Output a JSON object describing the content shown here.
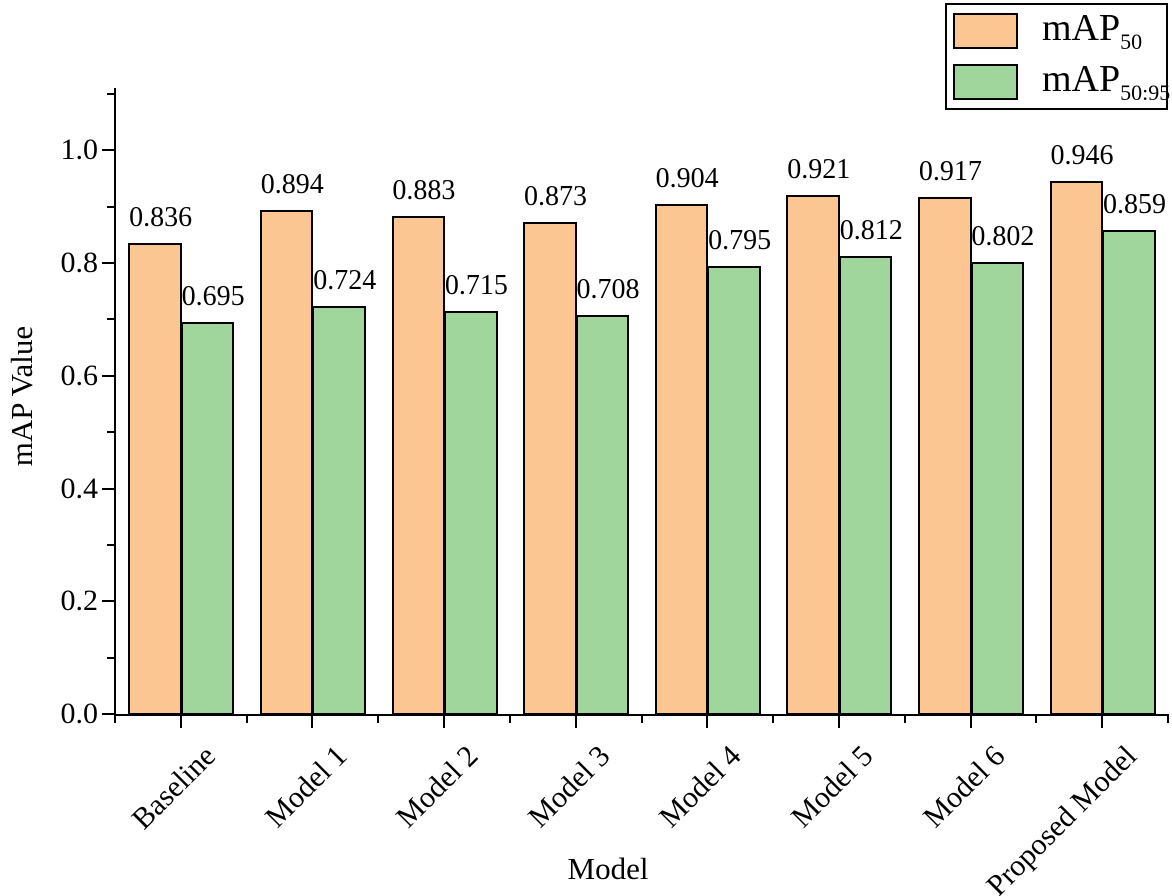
{
  "chart_data": {
    "type": "bar",
    "categories": [
      "Baseline",
      "Model 1",
      "Model 2",
      "Model 3",
      "Model 4",
      "Model 5",
      "Model 6",
      "Proposed Model"
    ],
    "series": [
      {
        "name": "mAP50",
        "legend_label": {
          "base": "mAP",
          "sub": "50"
        },
        "color": "#FCC692",
        "edge_color": "#000000",
        "values": [
          0.836,
          0.894,
          0.883,
          0.873,
          0.904,
          0.921,
          0.917,
          0.946
        ]
      },
      {
        "name": "mAP50:95",
        "legend_label": {
          "base": "mAP",
          "sub": "50:95"
        },
        "color": "#A0D69B",
        "edge_color": "#000000",
        "values": [
          0.695,
          0.724,
          0.715,
          0.708,
          0.795,
          0.812,
          0.802,
          0.859
        ]
      }
    ],
    "xlabel": "Model",
    "ylabel": "mAP Value",
    "ylim": [
      0,
      1.1
    ],
    "y_major_ticks": [
      0.0,
      0.2,
      0.4,
      0.6,
      0.8,
      1.0
    ],
    "y_minor_ticks": [
      0.1,
      0.3,
      0.5,
      0.7,
      0.9,
      1.1
    ],
    "y_tick_decimals": 1,
    "value_label_decimals": 3,
    "x_tick_label_rotation_deg": 45,
    "legend_position": "top-right",
    "grid": false,
    "axis_color": "#000000",
    "text_color": "#000000",
    "background_color": "#ffffff"
  }
}
